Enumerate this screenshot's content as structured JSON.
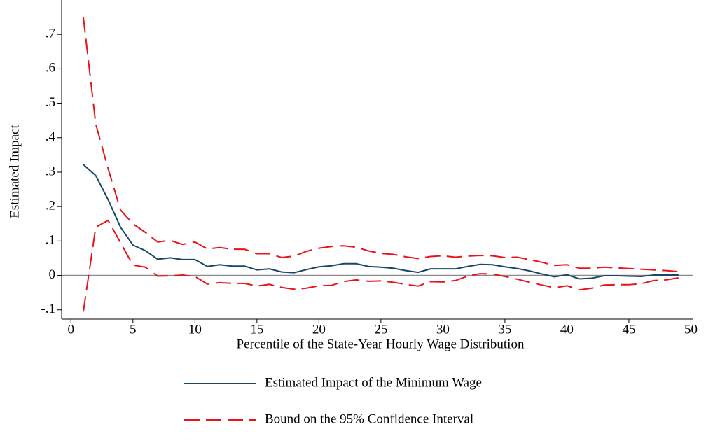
{
  "chart_data": {
    "type": "line",
    "xlabel": "Percentile of the State-Year Hourly Wage Distribution",
    "ylabel": "Estimated Impact",
    "x": [
      1,
      2,
      3,
      4,
      5,
      6,
      7,
      8,
      9,
      10,
      11,
      12,
      13,
      14,
      15,
      16,
      17,
      18,
      19,
      20,
      21,
      22,
      23,
      24,
      25,
      26,
      27,
      28,
      29,
      30,
      31,
      32,
      33,
      34,
      35,
      36,
      37,
      38,
      39,
      40,
      41,
      42,
      43,
      44,
      45,
      46,
      47,
      48,
      49
    ],
    "series": [
      {
        "name": "Estimated Impact of the Minimum Wage",
        "color": "#1a4768",
        "dash": "none",
        "values": [
          0.322,
          0.29,
          0.22,
          0.14,
          0.088,
          0.072,
          0.047,
          0.051,
          0.046,
          0.046,
          0.026,
          0.031,
          0.027,
          0.027,
          0.016,
          0.019,
          0.01,
          0.008,
          0.017,
          0.025,
          0.028,
          0.034,
          0.034,
          0.026,
          0.024,
          0.021,
          0.014,
          0.009,
          0.019,
          0.019,
          0.019,
          0.026,
          0.032,
          0.031,
          0.025,
          0.02,
          0.013,
          0.004,
          -0.004,
          0.002,
          -0.01,
          -0.008,
          -0.001,
          -0.001,
          -0.002,
          -0.003,
          0.001,
          0.001,
          0.001
        ]
      },
      {
        "name": "Bound on the 95% Confidence Interval",
        "color": "#e8131b",
        "dash": "dashed",
        "values": [
          0.75,
          0.44,
          0.31,
          0.19,
          0.15,
          0.125,
          0.097,
          0.102,
          0.09,
          0.097,
          0.077,
          0.081,
          0.076,
          0.076,
          0.063,
          0.063,
          0.052,
          0.056,
          0.07,
          0.079,
          0.084,
          0.086,
          0.082,
          0.071,
          0.064,
          0.061,
          0.054,
          0.049,
          0.055,
          0.057,
          0.053,
          0.056,
          0.058,
          0.057,
          0.052,
          0.053,
          0.046,
          0.038,
          0.029,
          0.031,
          0.021,
          0.021,
          0.024,
          0.022,
          0.02,
          0.018,
          0.016,
          0.014,
          0.011
        ]
      },
      {
        "color": "#e8131b",
        "dash": "dashed",
        "values": [
          -0.105,
          0.14,
          0.16,
          0.095,
          0.03,
          0.024,
          -0.002,
          -0.001,
          0.001,
          -0.003,
          -0.025,
          -0.021,
          -0.023,
          -0.023,
          -0.031,
          -0.026,
          -0.035,
          -0.04,
          -0.037,
          -0.03,
          -0.029,
          -0.018,
          -0.013,
          -0.017,
          -0.016,
          -0.02,
          -0.026,
          -0.031,
          -0.018,
          -0.019,
          -0.015,
          -0.002,
          0.005,
          0.004,
          -0.003,
          -0.011,
          -0.02,
          -0.028,
          -0.036,
          -0.03,
          -0.042,
          -0.037,
          -0.028,
          -0.027,
          -0.027,
          -0.024,
          -0.015,
          -0.013,
          -0.007
        ]
      }
    ],
    "xlim": [
      -0.75,
      50.2
    ],
    "ylim": [
      -0.127,
      0.8
    ],
    "xticks": [
      0,
      5,
      10,
      15,
      20,
      25,
      30,
      35,
      40,
      45,
      50
    ],
    "yticks": [
      {
        "value": -0.1,
        "label": "-.1"
      },
      0,
      {
        "value": 0.1,
        "label": ".1"
      },
      {
        "value": 0.2,
        "label": ".2"
      },
      {
        "value": 0.3,
        "label": ".3"
      },
      {
        "value": 0.4,
        "label": ".4"
      },
      {
        "value": 0.5,
        "label": ".5"
      },
      {
        "value": 0.6,
        "label": ".6"
      },
      {
        "value": 0.7,
        "label": ".7"
      }
    ],
    "reference_line": 0,
    "reference_color": "#8c8c8c",
    "legend": "bottom"
  }
}
